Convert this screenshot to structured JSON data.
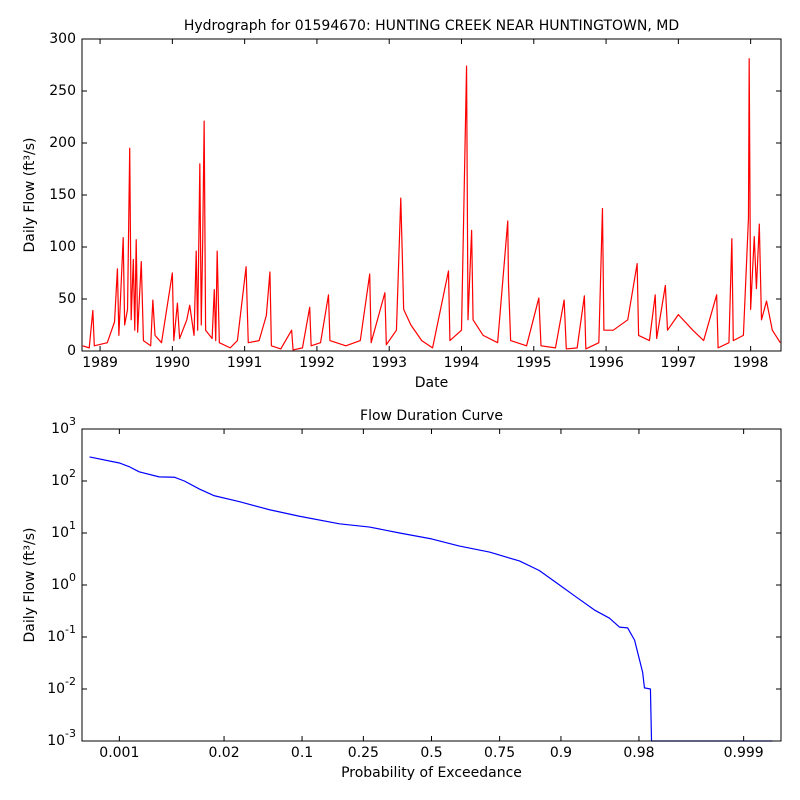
{
  "chart_data": [
    {
      "type": "line",
      "title": "Hydrograph for 01594670: HUNTING CREEK NEAR HUNTINGTOWN, MD",
      "xlabel": "Date",
      "ylabel": "Daily Flow (ft³/s)",
      "x": [
        1988.76,
        1988.85,
        1988.9,
        1988.92,
        1989.1,
        1989.2,
        1989.24,
        1989.26,
        1989.32,
        1989.34,
        1989.38,
        1989.41,
        1989.43,
        1989.46,
        1989.48,
        1989.5,
        1989.52,
        1989.57,
        1989.6,
        1989.7,
        1989.73,
        1989.76,
        1989.85,
        1990.0,
        1990.02,
        1990.07,
        1990.1,
        1990.2,
        1990.24,
        1990.3,
        1990.33,
        1990.35,
        1990.38,
        1990.4,
        1990.42,
        1990.44,
        1990.46,
        1990.55,
        1990.58,
        1990.6,
        1990.62,
        1990.65,
        1990.8,
        1990.9,
        1991.02,
        1991.05,
        1991.2,
        1991.3,
        1991.35,
        1991.37,
        1991.5,
        1991.65,
        1991.67,
        1991.8,
        1991.9,
        1991.92,
        1992.05,
        1992.16,
        1992.18,
        1992.4,
        1992.6,
        1992.73,
        1992.75,
        1992.94,
        1992.96,
        1993.1,
        1993.16,
        1993.18,
        1993.2,
        1993.3,
        1993.45,
        1993.6,
        1993.82,
        1993.84,
        1994.0,
        1994.07,
        1994.09,
        1994.14,
        1994.16,
        1994.3,
        1994.5,
        1994.64,
        1994.65,
        1994.68,
        1994.9,
        1995.07,
        1995.1,
        1995.3,
        1995.42,
        1995.45,
        1995.6,
        1995.7,
        1995.72,
        1995.9,
        1995.95,
        1995.97,
        1996.1,
        1996.3,
        1996.43,
        1996.45,
        1996.6,
        1996.68,
        1996.7,
        1996.82,
        1996.85,
        1997.0,
        1997.2,
        1997.35,
        1997.53,
        1997.55,
        1997.7,
        1997.74,
        1997.76,
        1997.9,
        1997.97,
        1997.98,
        1998.0,
        1998.05,
        1998.08,
        1998.12,
        1998.15,
        1998.22,
        1998.3,
        1998.41
      ],
      "series": [
        {
          "color": "#ff0000",
          "values": [
            5,
            3,
            39,
            5,
            8,
            28,
            79,
            15,
            109,
            25,
            40,
            195,
            30,
            88,
            20,
            107,
            18,
            86,
            10,
            5,
            49,
            15,
            8,
            75,
            10,
            46,
            12,
            30,
            44,
            15,
            96,
            20,
            180,
            25,
            107,
            221,
            20,
            12,
            59,
            10,
            96,
            8,
            3,
            10,
            81,
            8,
            10,
            34,
            76,
            5,
            2,
            20,
            1,
            3,
            42,
            5,
            8,
            54,
            10,
            5,
            10,
            74,
            8,
            56,
            6,
            20,
            147,
            95,
            40,
            25,
            10,
            3,
            77,
            10,
            20,
            274,
            30,
            116,
            30,
            15,
            8,
            125,
            66,
            10,
            5,
            51,
            5,
            3,
            49,
            2,
            3,
            53,
            2,
            8,
            137,
            20,
            20,
            30,
            84,
            15,
            10,
            54,
            12,
            63,
            20,
            35,
            20,
            10,
            54,
            3,
            8,
            108,
            10,
            15,
            128,
            281,
            40,
            110,
            60,
            122,
            30,
            48,
            20,
            8
          ]
        }
      ],
      "xlim": [
        1988.75,
        1998.42
      ],
      "xticks": [
        1989,
        1990,
        1991,
        1992,
        1993,
        1994,
        1995,
        1996,
        1997,
        1998
      ],
      "ylim": [
        0,
        300
      ],
      "yticks": [
        0,
        50,
        100,
        150,
        200,
        250,
        300
      ]
    },
    {
      "type": "line",
      "xscale": "probability",
      "yscale": "log",
      "title": "Flow Duration Curve",
      "xlabel": "Probability of Exceedance",
      "ylabel": "Daily Flow (ft³/s)",
      "x": [
        0.000355,
        0.001,
        0.0014,
        0.0019,
        0.0035,
        0.0055,
        0.0072,
        0.0108,
        0.0158,
        0.0287,
        0.0544,
        0.0956,
        0.181,
        0.27,
        0.376,
        0.5,
        0.609,
        0.717,
        0.808,
        0.857,
        0.8975,
        0.9216,
        0.9467,
        0.961,
        0.9686,
        0.9739,
        0.9778,
        0.9803,
        0.9817,
        0.9825,
        0.9849,
        0.9853,
        0.99963
      ],
      "series": [
        {
          "color": "#0000ff",
          "values": [
            290,
            222,
            187,
            150,
            120,
            118,
            100,
            70,
            52,
            40,
            28,
            21,
            15,
            13,
            10,
            7.7,
            5.6,
            4.3,
            2.9,
            1.9,
            1.0,
            0.62,
            0.33,
            0.23,
            0.155,
            0.15,
            0.087,
            0.036,
            0.021,
            0.0105,
            0.01,
            0.001,
            0.001
          ]
        }
      ],
      "xlim": [
        0.00027,
        0.99973
      ],
      "xticks": [
        0.001,
        0.02,
        0.1,
        0.25,
        0.5,
        0.75,
        0.9,
        0.98,
        0.999
      ],
      "ylim": [
        0.001,
        1000
      ],
      "yticks": [
        {
          "value": 0.001,
          "label": "10^-3"
        },
        {
          "value": 0.01,
          "label": "10^-2"
        },
        {
          "value": 0.1,
          "label": "10^-1"
        },
        {
          "value": 1,
          "label": "10^0"
        },
        {
          "value": 10,
          "label": "10^1"
        },
        {
          "value": 100,
          "label": "10^2"
        },
        {
          "value": 1000,
          "label": "10^3"
        }
      ]
    }
  ]
}
